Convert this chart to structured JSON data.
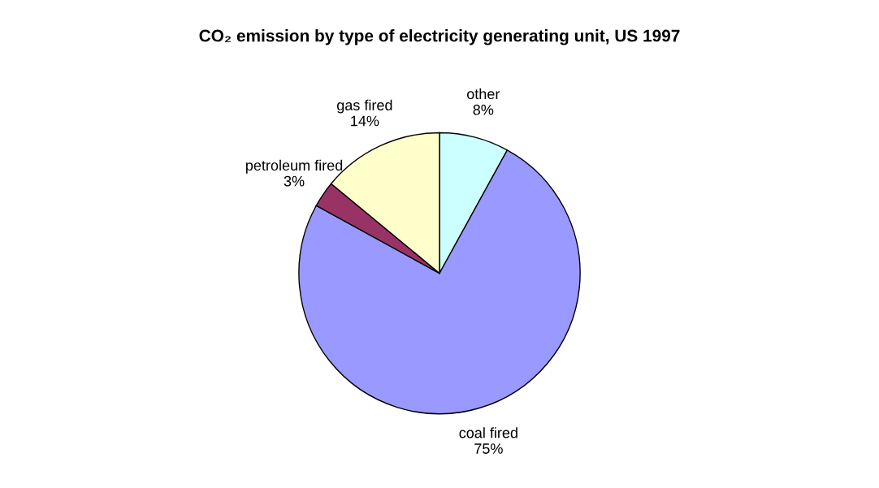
{
  "chart_data": {
    "type": "pie",
    "title": "CO₂ emission by type of electricity generating unit, US 1997",
    "categories": [
      "other",
      "coal fired",
      "petroleum fired",
      "gas fired"
    ],
    "values": [
      8,
      75,
      3,
      14
    ],
    "colors": [
      "#ccffff",
      "#9999ff",
      "#993366",
      "#ffffcc"
    ],
    "value_labels": [
      "8%",
      "75%",
      "3%",
      "14%"
    ]
  }
}
